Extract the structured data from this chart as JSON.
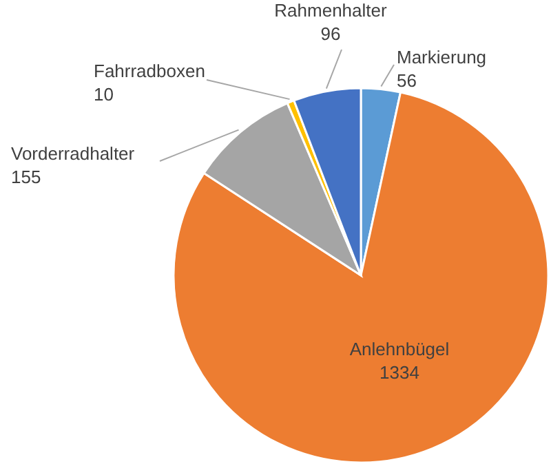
{
  "chart_data": {
    "type": "pie",
    "categories": [
      "Markierung",
      "Anlehnbügel",
      "Vorderradhalter",
      "Fahrradboxen",
      "Rahmenhalter"
    ],
    "values": [
      56,
      1334,
      155,
      10,
      96
    ],
    "colors": [
      "#5b9bd5",
      "#ed7d31",
      "#a5a5a5",
      "#ffc000",
      "#4472c4"
    ],
    "data_labels": true
  }
}
